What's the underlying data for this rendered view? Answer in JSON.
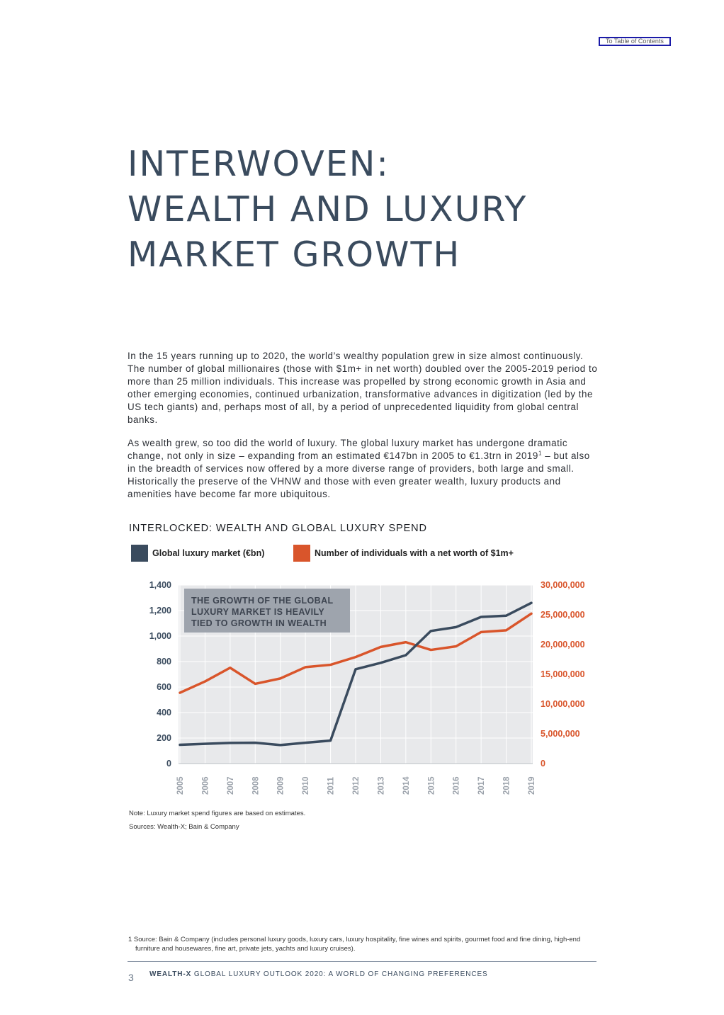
{
  "toc_link": "To Table of Contents",
  "title": {
    "lines": [
      "INTERWOVEN:",
      "WEALTH AND LUXURY",
      "MARKET GROWTH"
    ]
  },
  "intro": {
    "p1": "In the 15 years running up to 2020, the world’s wealthy population grew in size almost continuously. The number of global millionaires (those with $1m+ in net worth) doubled over the 2005-2019 period to more than 25 million individuals. This increase was propelled by strong economic growth in Asia and other emerging economies, continued urbanization, transformative advances in digitization (led by the US tech giants) and, perhaps most of all, by a period of unprecedented liquidity from global central banks.",
    "p2_before": "As wealth grew, so too did the world of luxury. The global luxury market has undergone dramatic change, not only in size – expanding from an estimated €147bn in 2005 to €1.3trn in 2019",
    "p2_ref": "1",
    "p2_after": " – but also in the breadth of services now offered by a more diverse range of providers, both large and small. Historically the preserve of the VHNW and those with even greater wealth, luxury products and amenities have become far more ubiquitous."
  },
  "chart_data": {
    "type": "line",
    "title": "INTERLOCKED: WEALTH AND GLOBAL LUXURY SPEND",
    "annotation": "THE GROWTH OF THE GLOBAL LUXURY MARKET IS HEAVILY TIED TO GROWTH IN WEALTH",
    "x": [
      "2005",
      "2006",
      "2007",
      "2008",
      "2009",
      "2010",
      "2011",
      "2012",
      "2013",
      "2014",
      "2015",
      "2016",
      "2017",
      "2018",
      "2019"
    ],
    "y_left": {
      "range": [
        0,
        1400
      ],
      "ticks": [
        "0",
        "200",
        "400",
        "600",
        "800",
        "1,000",
        "1,200",
        "1,400"
      ]
    },
    "y_right": {
      "range": [
        0,
        30000000
      ],
      "ticks": [
        "0",
        "5,000,000",
        "10,000,000",
        "15,000,000",
        "20,000,000",
        "25,000,000",
        "30,000,000"
      ]
    },
    "series": [
      {
        "name": "Global luxury market (€bn)",
        "axis": "left",
        "color": "#3a4b5e",
        "values": [
          147,
          155,
          162,
          163,
          145,
          163,
          180,
          740,
          790,
          850,
          1040,
          1070,
          1150,
          1160,
          1260
        ]
      },
      {
        "name": "Number of individuals with a net worth of $1m+",
        "axis": "right",
        "color": "#d9552b",
        "values": [
          11900000,
          13800000,
          16100000,
          13400000,
          14300000,
          16200000,
          16600000,
          17900000,
          19600000,
          20400000,
          19100000,
          19700000,
          22100000,
          22400000,
          25200000
        ]
      }
    ],
    "grid": true,
    "legend": "top"
  },
  "notes": {
    "note": "Note: Luxury market spend figures are based on estimates.",
    "sources": "Sources: Wealth-X; Bain & Company"
  },
  "footnote": "1  Source: Bain & Company (includes personal luxury goods, luxury cars, luxury hospitality, fine wines and spirits, gourmet food and fine dining, high-end furniture and housewares, fine art, private jets, yachts and luxury cruises).",
  "footer": {
    "page_number": "3",
    "brand": "WEALTH-X",
    "publication": " GLOBAL LUXURY OUTLOOK 2020: A WORLD OF CHANGING PREFERENCES"
  }
}
